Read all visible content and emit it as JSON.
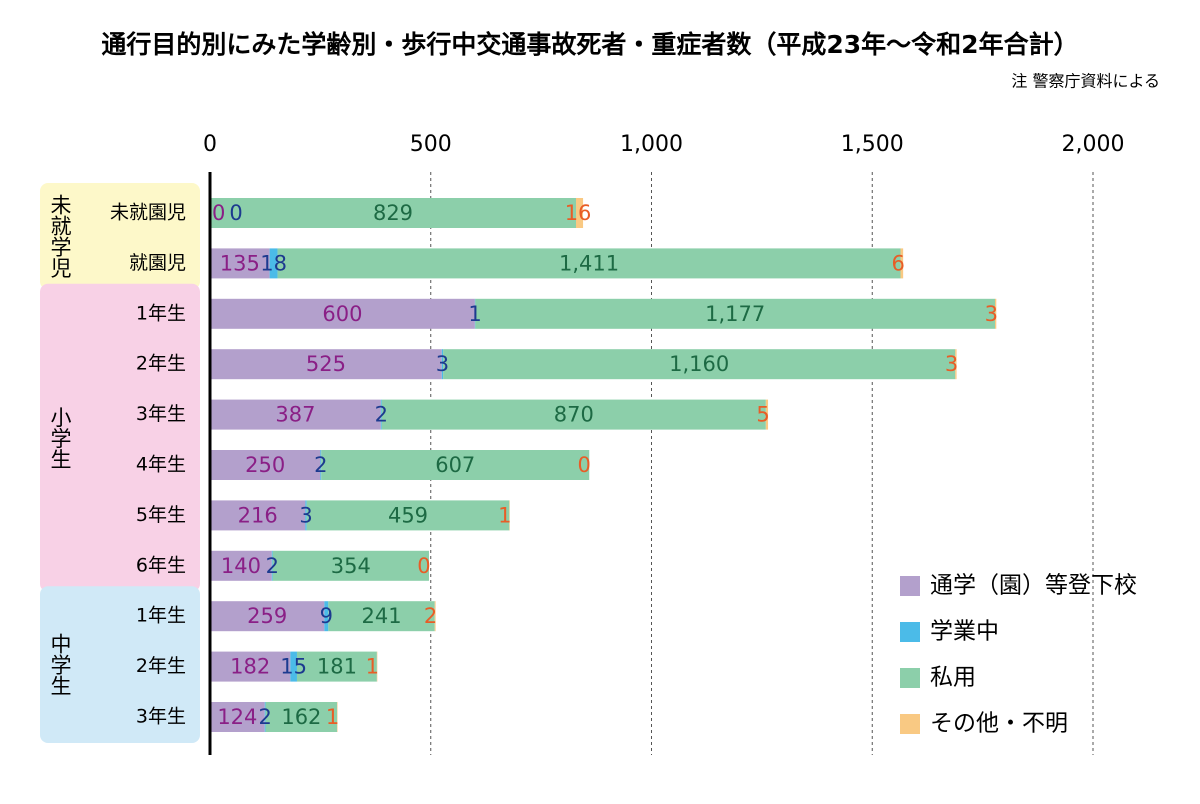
{
  "chart_data": {
    "type": "stacked-bar-horizontal",
    "title": "通行目的別にみた学齢別・歩行中交通事故死者・重症者数（平成23年〜令和2年合計）",
    "note": "注 警察庁資料による",
    "categories": [
      "未就園児",
      "就園児",
      "1年生",
      "2年生",
      "3年生",
      "4年生",
      "5年生",
      "6年生",
      "1年生",
      "2年生",
      "3年生"
    ],
    "category_groups": [
      "未就学児",
      "未就学児",
      "小学生",
      "小学生",
      "小学生",
      "小学生",
      "小学生",
      "小学生",
      "中学生",
      "中学生",
      "中学生"
    ],
    "group_colors": {
      "未就学児": "#fdf8c9",
      "小学生": "#f8d1e6",
      "中学生": "#d0e9f7"
    },
    "series": [
      {
        "name": "通学（園）等登下校",
        "color": "#b3a0cc",
        "label_color": "#8a1f86",
        "values": [
          0,
          135,
          600,
          525,
          387,
          250,
          216,
          140,
          259,
          182,
          124
        ]
      },
      {
        "name": "学業中",
        "color": "#4bbbe8",
        "label_color": "#1c3a8f",
        "values": [
          0,
          18,
          1,
          3,
          2,
          2,
          3,
          2,
          9,
          15,
          2
        ]
      },
      {
        "name": "私用",
        "color": "#8ccfaa",
        "label_color": "#1d6a44",
        "values": [
          829,
          1411,
          1177,
          1160,
          870,
          607,
          459,
          354,
          241,
          181,
          162
        ],
        "value_labels": [
          "829",
          "1,411",
          "1,177",
          "1,160",
          "870",
          "607",
          "459",
          "354",
          "241",
          "181",
          "162"
        ]
      },
      {
        "name": "その他・不明",
        "color": "#f9c983",
        "label_color": "#e85d27",
        "values": [
          16,
          6,
          3,
          3,
          5,
          0,
          1,
          0,
          2,
          1,
          1
        ]
      }
    ],
    "xlim": [
      0,
      2000
    ],
    "xticks": [
      0,
      500,
      {
        "value": 1000,
        "label": "1,000"
      },
      {
        "value": 1500,
        "label": "1,500"
      },
      {
        "value": 2000,
        "label": "2,000"
      }
    ],
    "grid": true,
    "legend": "lower right"
  }
}
